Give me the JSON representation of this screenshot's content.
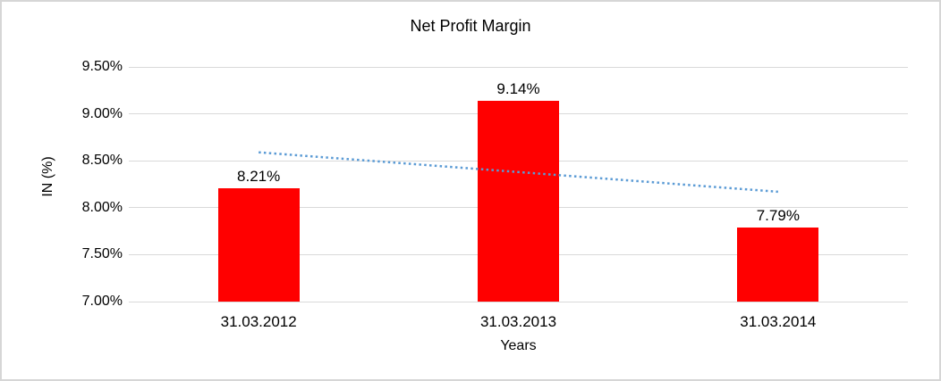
{
  "chart_data": {
    "type": "bar",
    "title": "Net Profit Margin",
    "xlabel": "Years",
    "ylabel": "IN (%)",
    "categories": [
      "31.03.2012",
      "31.03.2013",
      "31.03.2014"
    ],
    "values": [
      8.21,
      9.14,
      7.79
    ],
    "data_labels": [
      "8.21%",
      "9.14%",
      "7.79%"
    ],
    "ylim": [
      7.0,
      9.5
    ],
    "ytick_values": [
      9.5,
      9.0,
      8.5,
      8.0,
      7.5,
      7.0
    ],
    "ytick_labels": [
      "9.50%",
      "9.00%",
      "8.50%",
      "8.00%",
      "7.50%",
      "7.00%"
    ],
    "grid": "horizontal",
    "legend": "none",
    "bar_color": "#FF0000",
    "gridline_color": "#D9D9D9",
    "trendline": {
      "type": "linear",
      "style": "dotted",
      "color": "#5B9BD5",
      "start_value": 8.59,
      "end_value": 8.17
    }
  }
}
